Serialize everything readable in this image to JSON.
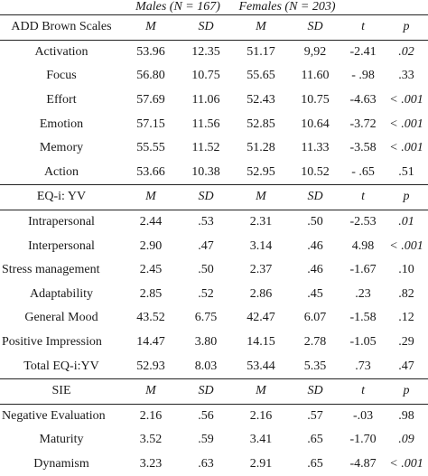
{
  "groups": {
    "males": "Males (N = 167)",
    "females": "Females (N = 203)"
  },
  "sections": [
    {
      "title": "ADD Brown Scales",
      "headers": [
        "M",
        "SD",
        "M",
        "SD",
        "t",
        "p"
      ],
      "rows": [
        {
          "label": "Activation",
          "cells": [
            "53.96",
            "12.35",
            "51.17",
            "9,92",
            "-2.41",
            ".02"
          ],
          "p_italic": true
        },
        {
          "label": "Focus",
          "cells": [
            "56.80",
            "10.75",
            "55.65",
            "11.60",
            "- .98",
            ".33"
          ],
          "p_italic": false
        },
        {
          "label": "Effort",
          "cells": [
            "57.69",
            "11.06",
            "52.43",
            "10.75",
            "-4.63",
            "< .001"
          ],
          "p_italic": true
        },
        {
          "label": "Emotion",
          "cells": [
            "57.15",
            "11.56",
            "52.85",
            "10.64",
            "-3.72",
            "< .001"
          ],
          "p_italic": true
        },
        {
          "label": "Memory",
          "cells": [
            "55.55",
            "11.52",
            "51.28",
            "11.33",
            "-3.58",
            "< .001"
          ],
          "p_italic": true
        },
        {
          "label": "Action",
          "cells": [
            "53.66",
            "10.38",
            "52.95",
            "10.52",
            "- .65",
            ".51"
          ],
          "p_italic": false
        }
      ]
    },
    {
      "title": "EQ-i: YV",
      "headers": [
        "M",
        "SD",
        "M",
        "SD",
        "t",
        "p"
      ],
      "rows": [
        {
          "label": "Intrapersonal",
          "cells": [
            "2.44",
            ".53",
            "2.31",
            ".50",
            "-2.53",
            ".01"
          ],
          "p_italic": true
        },
        {
          "label": "Interpersonal",
          "cells": [
            "2.90",
            ".47",
            "3.14",
            ".46",
            "4.98",
            "< .001"
          ],
          "p_italic": true
        },
        {
          "label": "Stress management",
          "cells": [
            "2.45",
            ".50",
            "2.37",
            ".46",
            "-1.67",
            ".10"
          ],
          "p_italic": false
        },
        {
          "label": "Adaptability",
          "cells": [
            "2.85",
            ".52",
            "2.86",
            ".45",
            ".23",
            ".82"
          ],
          "p_italic": false
        },
        {
          "label": "General Mood",
          "cells": [
            "43.52",
            "6.75",
            "42.47",
            "6.07",
            "-1.58",
            ".12"
          ],
          "p_italic": false
        },
        {
          "label": "Positive Impression",
          "cells": [
            "14.47",
            "3.80",
            "14.15",
            "2.78",
            "-1.05",
            ".29"
          ],
          "p_italic": false
        },
        {
          "label": "Total EQ-i:YV",
          "cells": [
            "52.93",
            "8.03",
            "53.44",
            "5.35",
            ".73",
            ".47"
          ],
          "p_italic": false
        }
      ]
    },
    {
      "title": "SIE",
      "headers": [
        "M",
        "SD",
        "M",
        "SD",
        "t",
        "p"
      ],
      "rows": [
        {
          "label": "Negative Evaluation",
          "cells": [
            "2.16",
            ".56",
            "2.16",
            ".57",
            "-.03",
            ".98"
          ],
          "p_italic": false
        },
        {
          "label": "Maturity",
          "cells": [
            "3.52",
            ".59",
            "3.41",
            ".65",
            "-1.70",
            ".09"
          ],
          "p_italic": true
        },
        {
          "label": "Dynamism",
          "cells": [
            "3.23",
            ".63",
            "2.91",
            ".65",
            "-4.87",
            "< .001"
          ],
          "p_italic": true
        }
      ]
    }
  ]
}
